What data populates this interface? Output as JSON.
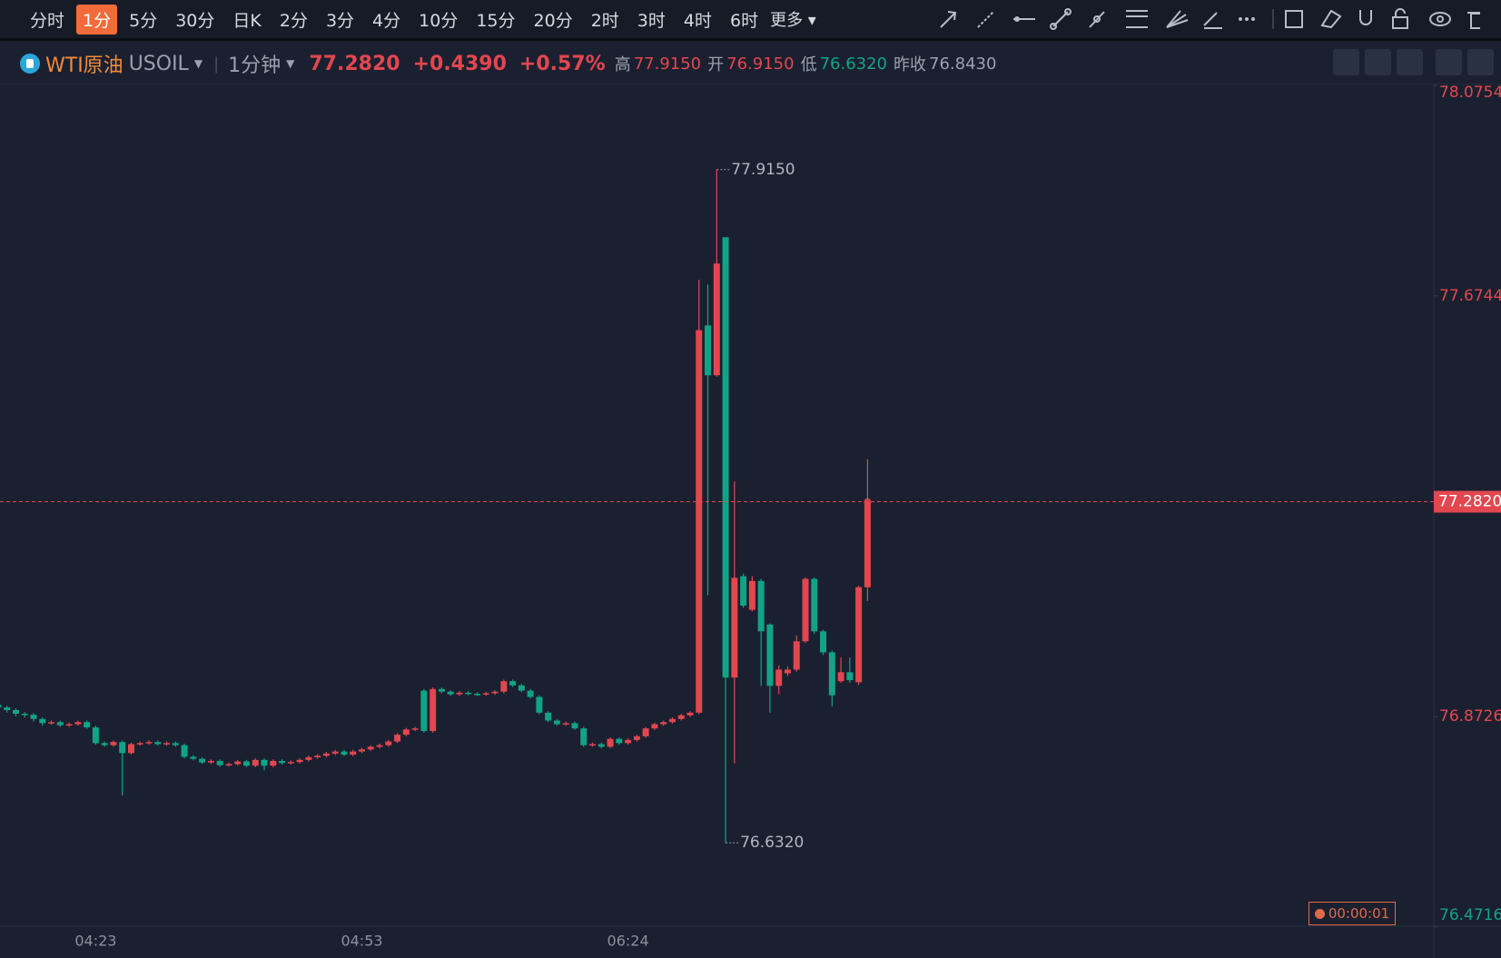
{
  "toolbar": {
    "periods": [
      "分时",
      "1分",
      "5分",
      "30分",
      "日K",
      "2分",
      "3分",
      "4分",
      "10分",
      "15分",
      "20分",
      "2时",
      "3时",
      "4时",
      "6时"
    ],
    "more": "更多"
  },
  "header": {
    "name": "WTI原油",
    "symbol": "USOIL",
    "interval": "1分钟",
    "price": "77.2820",
    "change": "+0.4390",
    "change_pct": "+0.57%",
    "high_label": "高",
    "high": "77.9150",
    "open_label": "开",
    "open": "76.9150",
    "low_label": "低",
    "low": "76.6320",
    "prev_close_label": "昨收",
    "prev_close": {
      "value": 76.843,
      "label": "76.8430"
    }
  },
  "timer": "00:00:01",
  "chart_data": {
    "type": "candlestick",
    "categories": [
      null,
      null,
      null,
      null,
      null,
      null,
      null,
      null,
      null,
      null,
      null,
      "04:23",
      null,
      null,
      null,
      null,
      null,
      null,
      null,
      null,
      null,
      null,
      null,
      null,
      null,
      null,
      null,
      null,
      null,
      null,
      null,
      null,
      null,
      null,
      null,
      null,
      null,
      null,
      null,
      null,
      null,
      "04:53",
      null,
      null,
      null,
      null,
      null,
      null,
      null,
      null,
      null,
      null,
      null,
      null,
      null,
      null,
      null,
      null,
      null,
      null,
      null,
      null,
      null,
      null,
      null,
      null,
      null,
      null,
      null,
      null,
      null,
      "06:24",
      null,
      null,
      null,
      null,
      null,
      null,
      null,
      null,
      null,
      null,
      null,
      null,
      null,
      null,
      null,
      null,
      null,
      null,
      null,
      null,
      null,
      null,
      null,
      null,
      null,
      null,
      null
    ],
    "open": [
      76.895,
      76.89,
      76.885,
      76.878,
      76.876,
      76.868,
      76.86,
      76.862,
      76.856,
      76.858,
      76.862,
      76.852,
      76.822,
      76.818,
      76.824,
      76.803,
      76.82,
      76.822,
      76.824,
      76.82,
      76.822,
      76.818,
      76.796,
      76.792,
      76.785,
      76.788,
      76.78,
      76.782,
      76.787,
      76.779,
      76.79,
      76.779,
      76.788,
      76.784,
      76.786,
      76.79,
      76.795,
      76.798,
      76.802,
      76.806,
      76.8,
      76.806,
      76.81,
      76.815,
      76.818,
      76.825,
      76.838,
      76.848,
      76.922,
      76.845,
      76.925,
      76.92,
      76.915,
      76.918,
      76.916,
      76.915,
      76.917,
      76.92,
      76.94,
      76.932,
      76.922,
      76.91,
      76.88,
      76.865,
      76.858,
      76.86,
      76.85,
      76.818,
      76.82,
      76.815,
      76.83,
      76.822,
      76.828,
      76.835,
      76.85,
      76.858,
      76.862,
      76.868,
      76.875,
      76.88,
      77.618,
      77.523,
      77.786,
      76.947,
      77.14,
      77.076,
      77.131,
      77.048,
      76.931,
      76.955,
      76.962,
      77.016,
      77.135,
      77.035,
      76.995,
      76.94,
      76.957,
      76.938,
      77.119
    ],
    "high": [
      76.898,
      76.893,
      76.888,
      76.881,
      76.879,
      76.871,
      76.865,
      76.865,
      76.861,
      76.865,
      76.865,
      76.855,
      76.825,
      76.827,
      76.827,
      76.823,
      76.825,
      76.827,
      76.827,
      76.825,
      76.825,
      76.821,
      76.799,
      76.795,
      76.791,
      76.791,
      76.785,
      76.79,
      76.79,
      76.793,
      76.793,
      76.791,
      76.791,
      76.789,
      76.793,
      76.798,
      76.801,
      76.805,
      76.809,
      76.809,
      76.809,
      76.813,
      76.818,
      76.821,
      76.828,
      76.841,
      76.851,
      76.853,
      76.925,
      76.928,
      76.928,
      76.923,
      76.921,
      76.921,
      76.919,
      76.92,
      76.923,
      76.943,
      76.943,
      76.935,
      76.925,
      76.913,
      76.883,
      76.868,
      76.863,
      76.863,
      76.853,
      76.823,
      76.823,
      76.833,
      76.833,
      76.831,
      76.838,
      76.853,
      76.861,
      76.865,
      76.871,
      76.878,
      76.883,
      77.705,
      77.696,
      77.915,
      77.786,
      77.321,
      77.145,
      77.14,
      77.135,
      77.05,
      76.97,
      76.968,
      77.027,
      77.138,
      77.138,
      77.038,
      76.998,
      76.985,
      76.985,
      77.122,
      77.363
    ],
    "low": [
      76.885,
      76.88,
      76.873,
      76.871,
      76.863,
      76.855,
      76.857,
      76.853,
      76.853,
      76.855,
      76.849,
      76.819,
      76.815,
      76.815,
      76.722,
      76.8,
      76.817,
      76.819,
      76.817,
      76.817,
      76.815,
      76.793,
      76.789,
      76.782,
      76.782,
      76.777,
      76.777,
      76.779,
      76.776,
      76.776,
      76.77,
      76.776,
      76.781,
      76.781,
      76.783,
      76.787,
      76.792,
      76.795,
      76.799,
      76.797,
      76.797,
      76.803,
      76.807,
      76.812,
      76.815,
      76.822,
      76.835,
      76.845,
      76.842,
      76.842,
      76.917,
      76.912,
      76.912,
      76.913,
      76.912,
      76.912,
      76.914,
      76.917,
      76.929,
      76.919,
      76.907,
      76.877,
      76.862,
      76.855,
      76.855,
      76.847,
      76.815,
      76.815,
      76.812,
      76.812,
      76.819,
      76.819,
      76.825,
      76.832,
      76.847,
      76.855,
      76.859,
      76.865,
      76.872,
      76.877,
      77.104,
      77.52,
      76.632,
      76.783,
      77.08,
      77.073,
      76.931,
      76.88,
      76.915,
      76.95,
      76.958,
      77.013,
      77.03,
      76.99,
      76.892,
      76.937,
      76.937,
      76.933,
      77.093
    ],
    "close": [
      76.89,
      76.885,
      76.878,
      76.876,
      76.868,
      76.86,
      76.862,
      76.856,
      76.858,
      76.862,
      76.852,
      76.822,
      76.818,
      76.824,
      76.803,
      76.82,
      76.822,
      76.824,
      76.82,
      76.822,
      76.818,
      76.796,
      76.792,
      76.785,
      76.788,
      76.78,
      76.782,
      76.787,
      76.779,
      76.79,
      76.779,
      76.788,
      76.784,
      76.786,
      76.79,
      76.795,
      76.798,
      76.802,
      76.806,
      76.8,
      76.806,
      76.81,
      76.815,
      76.818,
      76.825,
      76.838,
      76.848,
      76.85,
      76.845,
      76.925,
      76.92,
      76.915,
      76.918,
      76.916,
      76.915,
      76.917,
      76.92,
      76.94,
      76.932,
      76.922,
      76.91,
      76.88,
      76.865,
      76.858,
      76.86,
      76.85,
      76.818,
      76.82,
      76.815,
      76.83,
      76.822,
      76.828,
      76.835,
      76.85,
      76.858,
      76.862,
      76.868,
      76.875,
      76.88,
      77.609,
      77.523,
      77.736,
      76.947,
      77.137,
      77.084,
      77.131,
      77.035,
      76.931,
      76.962,
      76.962,
      77.016,
      77.135,
      77.035,
      76.995,
      76.913,
      76.957,
      76.942,
      77.119,
      77.282
    ],
    "up_color": "#e2474f",
    "down_color": "#12a386",
    "ylim": [
      76.473,
      78.079
    ],
    "yticks": [
      76.4716,
      76.8726,
      77.6744,
      78.0754
    ],
    "last_price": {
      "value": 77.282,
      "label": "77.2820"
    },
    "high_marker": {
      "value": 77.915,
      "label": "77.9150"
    },
    "low_marker": {
      "value": 76.632,
      "label": "76.6320"
    }
  }
}
